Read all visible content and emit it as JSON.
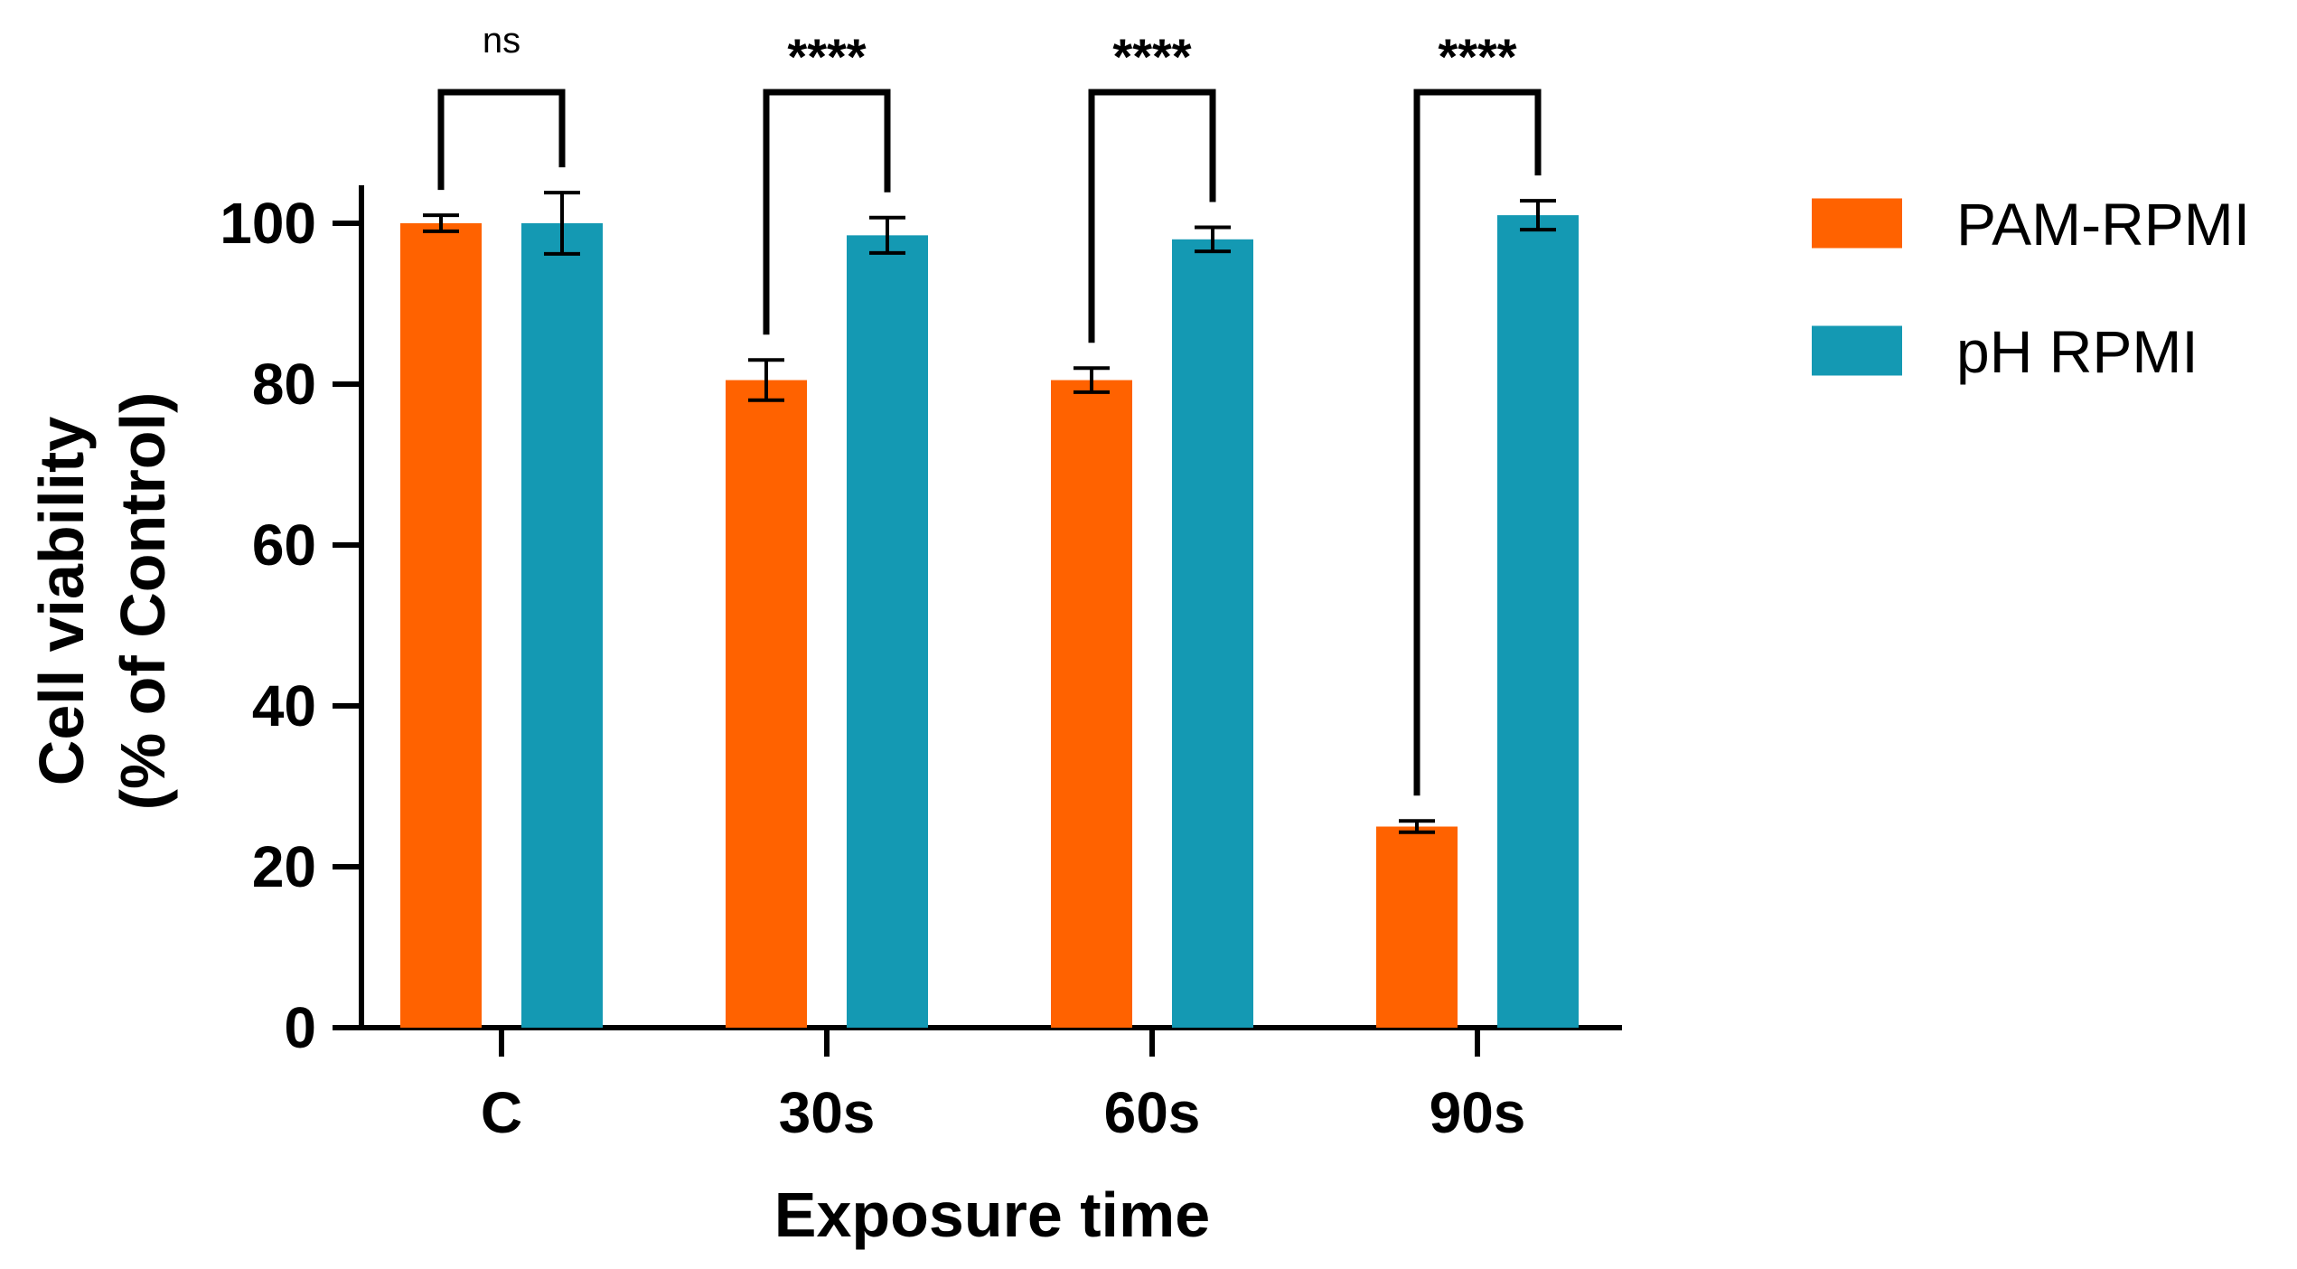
{
  "chart_data": {
    "type": "bar",
    "title": "",
    "xlabel": "Exposure time",
    "ylabel_line1": "Cell viability",
    "ylabel_line2": "(% of Control)",
    "categories": [
      "C",
      "30s",
      "60s",
      "90s"
    ],
    "ylim": [
      0,
      100
    ],
    "yticks": [
      "0",
      "20",
      "40",
      "60",
      "80",
      "100"
    ],
    "grid": false,
    "legend_position": "top-right",
    "series": [
      {
        "name": "PAM-RPMI",
        "color": "#ff6200",
        "values": [
          100,
          80.5,
          80.5,
          25
        ],
        "errors": [
          1,
          2.5,
          1.5,
          0.7
        ]
      },
      {
        "name": "pH RPMI",
        "color": "#1499b3",
        "values": [
          100,
          98.5,
          98,
          101
        ],
        "errors": [
          3.8,
          2.2,
          1.5,
          1.8
        ]
      }
    ],
    "significance": [
      "ns",
      "****",
      "****",
      "****"
    ]
  }
}
